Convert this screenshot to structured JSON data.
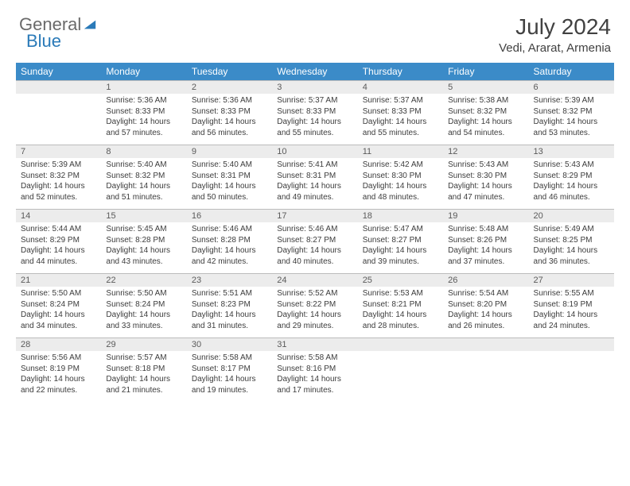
{
  "logo": {
    "word1": "General",
    "word2": "Blue"
  },
  "title": "July 2024",
  "location": "Vedi, Ararat, Armenia",
  "colors": {
    "header_bg": "#3b8bc8",
    "header_text": "#ffffff",
    "daynum_bg": "#ececec",
    "daynum_text": "#5a5a5a",
    "body_text": "#3c3c3c",
    "border": "#2f6ea6",
    "page_bg": "#ffffff",
    "logo_gray": "#6a6a6a",
    "logo_blue": "#2a7ab8"
  },
  "typography": {
    "title_fontsize": 28,
    "location_fontsize": 15,
    "dow_fontsize": 12,
    "daynum_fontsize": 11,
    "cell_fontsize": 10,
    "logo_fontsize": 22
  },
  "days_of_week": [
    "Sunday",
    "Monday",
    "Tuesday",
    "Wednesday",
    "Thursday",
    "Friday",
    "Saturday"
  ],
  "weeks": [
    [
      null,
      {
        "n": "1",
        "sr": "5:36 AM",
        "ss": "8:33 PM",
        "dl": "14 hours and 57 minutes."
      },
      {
        "n": "2",
        "sr": "5:36 AM",
        "ss": "8:33 PM",
        "dl": "14 hours and 56 minutes."
      },
      {
        "n": "3",
        "sr": "5:37 AM",
        "ss": "8:33 PM",
        "dl": "14 hours and 55 minutes."
      },
      {
        "n": "4",
        "sr": "5:37 AM",
        "ss": "8:33 PM",
        "dl": "14 hours and 55 minutes."
      },
      {
        "n": "5",
        "sr": "5:38 AM",
        "ss": "8:32 PM",
        "dl": "14 hours and 54 minutes."
      },
      {
        "n": "6",
        "sr": "5:39 AM",
        "ss": "8:32 PM",
        "dl": "14 hours and 53 minutes."
      }
    ],
    [
      {
        "n": "7",
        "sr": "5:39 AM",
        "ss": "8:32 PM",
        "dl": "14 hours and 52 minutes."
      },
      {
        "n": "8",
        "sr": "5:40 AM",
        "ss": "8:32 PM",
        "dl": "14 hours and 51 minutes."
      },
      {
        "n": "9",
        "sr": "5:40 AM",
        "ss": "8:31 PM",
        "dl": "14 hours and 50 minutes."
      },
      {
        "n": "10",
        "sr": "5:41 AM",
        "ss": "8:31 PM",
        "dl": "14 hours and 49 minutes."
      },
      {
        "n": "11",
        "sr": "5:42 AM",
        "ss": "8:30 PM",
        "dl": "14 hours and 48 minutes."
      },
      {
        "n": "12",
        "sr": "5:43 AM",
        "ss": "8:30 PM",
        "dl": "14 hours and 47 minutes."
      },
      {
        "n": "13",
        "sr": "5:43 AM",
        "ss": "8:29 PM",
        "dl": "14 hours and 46 minutes."
      }
    ],
    [
      {
        "n": "14",
        "sr": "5:44 AM",
        "ss": "8:29 PM",
        "dl": "14 hours and 44 minutes."
      },
      {
        "n": "15",
        "sr": "5:45 AM",
        "ss": "8:28 PM",
        "dl": "14 hours and 43 minutes."
      },
      {
        "n": "16",
        "sr": "5:46 AM",
        "ss": "8:28 PM",
        "dl": "14 hours and 42 minutes."
      },
      {
        "n": "17",
        "sr": "5:46 AM",
        "ss": "8:27 PM",
        "dl": "14 hours and 40 minutes."
      },
      {
        "n": "18",
        "sr": "5:47 AM",
        "ss": "8:27 PM",
        "dl": "14 hours and 39 minutes."
      },
      {
        "n": "19",
        "sr": "5:48 AM",
        "ss": "8:26 PM",
        "dl": "14 hours and 37 minutes."
      },
      {
        "n": "20",
        "sr": "5:49 AM",
        "ss": "8:25 PM",
        "dl": "14 hours and 36 minutes."
      }
    ],
    [
      {
        "n": "21",
        "sr": "5:50 AM",
        "ss": "8:24 PM",
        "dl": "14 hours and 34 minutes."
      },
      {
        "n": "22",
        "sr": "5:50 AM",
        "ss": "8:24 PM",
        "dl": "14 hours and 33 minutes."
      },
      {
        "n": "23",
        "sr": "5:51 AM",
        "ss": "8:23 PM",
        "dl": "14 hours and 31 minutes."
      },
      {
        "n": "24",
        "sr": "5:52 AM",
        "ss": "8:22 PM",
        "dl": "14 hours and 29 minutes."
      },
      {
        "n": "25",
        "sr": "5:53 AM",
        "ss": "8:21 PM",
        "dl": "14 hours and 28 minutes."
      },
      {
        "n": "26",
        "sr": "5:54 AM",
        "ss": "8:20 PM",
        "dl": "14 hours and 26 minutes."
      },
      {
        "n": "27",
        "sr": "5:55 AM",
        "ss": "8:19 PM",
        "dl": "14 hours and 24 minutes."
      }
    ],
    [
      {
        "n": "28",
        "sr": "5:56 AM",
        "ss": "8:19 PM",
        "dl": "14 hours and 22 minutes."
      },
      {
        "n": "29",
        "sr": "5:57 AM",
        "ss": "8:18 PM",
        "dl": "14 hours and 21 minutes."
      },
      {
        "n": "30",
        "sr": "5:58 AM",
        "ss": "8:17 PM",
        "dl": "14 hours and 19 minutes."
      },
      {
        "n": "31",
        "sr": "5:58 AM",
        "ss": "8:16 PM",
        "dl": "14 hours and 17 minutes."
      },
      null,
      null,
      null
    ]
  ],
  "labels": {
    "sunrise": "Sunrise:",
    "sunset": "Sunset:",
    "daylight": "Daylight:"
  }
}
